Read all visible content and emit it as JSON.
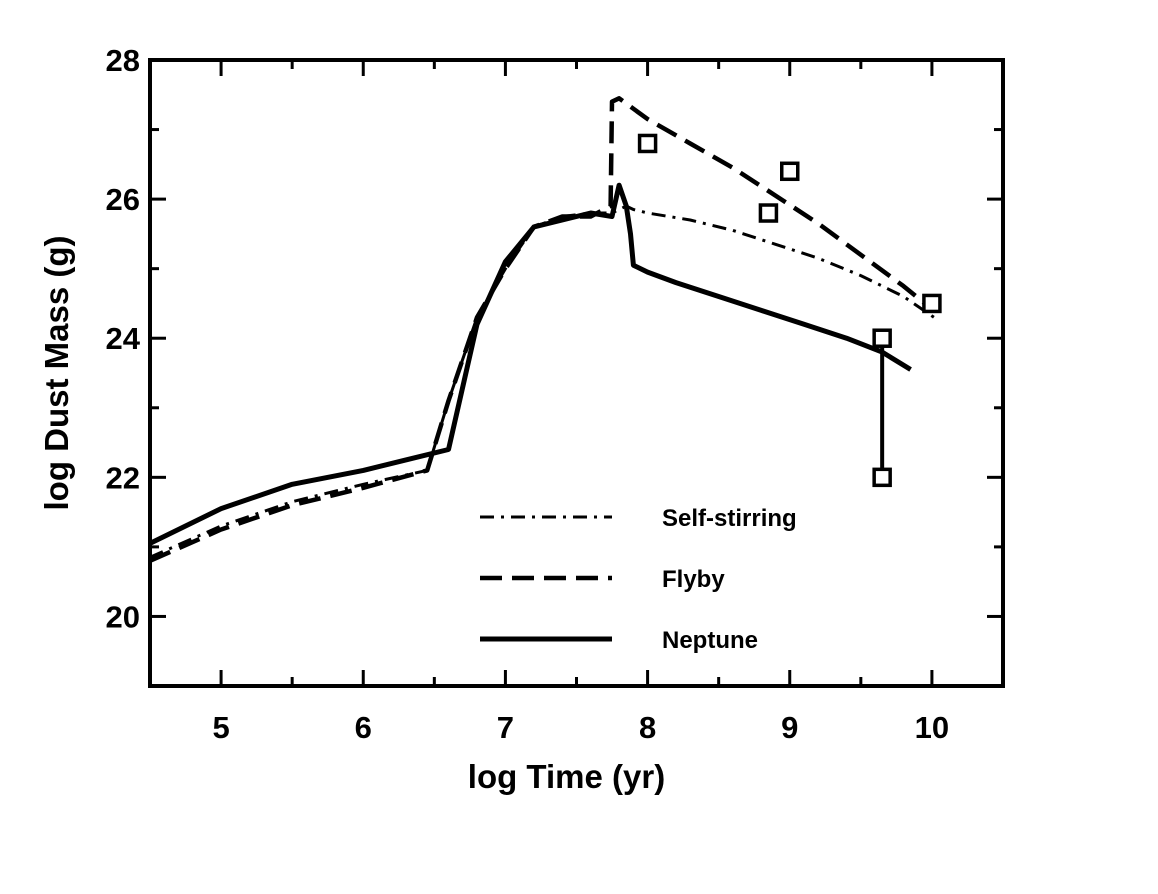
{
  "chart_data": {
    "type": "line",
    "title": "",
    "xlabel": "log Time (yr)",
    "ylabel": "log Dust Mass (g)",
    "xlim": [
      4.5,
      10.5
    ],
    "ylim": [
      19,
      28
    ],
    "x_ticks": [
      5,
      6,
      7,
      8,
      9,
      10
    ],
    "x_tick_labels": [
      "5",
      "6",
      "7",
      "8",
      "9",
      "10"
    ],
    "y_ticks": [
      20,
      22,
      24,
      26,
      28
    ],
    "y_tick_labels": [
      "20",
      "22",
      "24",
      "26",
      "28"
    ],
    "grid": false,
    "legend_position": "bottom-center",
    "series": [
      {
        "name": "Self-stirring",
        "style": "dash-dot",
        "x": [
          4.5,
          5.0,
          5.5,
          6.0,
          6.45,
          6.6,
          6.8,
          7.0,
          7.2,
          7.4,
          7.6,
          7.75,
          7.8,
          7.85,
          7.9,
          8.0,
          8.3,
          8.6,
          8.9,
          9.2,
          9.5,
          9.8,
          10.05
        ],
        "y": [
          20.85,
          21.3,
          21.65,
          21.9,
          22.1,
          23.1,
          24.3,
          25.0,
          25.6,
          25.75,
          25.8,
          25.8,
          25.85,
          25.9,
          25.85,
          25.8,
          25.7,
          25.55,
          25.35,
          25.15,
          24.9,
          24.6,
          24.25
        ]
      },
      {
        "name": "Flyby",
        "style": "dashed",
        "x": [
          4.5,
          5.0,
          5.5,
          6.0,
          6.45,
          6.6,
          6.8,
          7.0,
          7.2,
          7.4,
          7.6,
          7.74,
          7.75,
          7.8,
          8.0,
          8.3,
          8.6,
          8.9,
          9.2,
          9.5,
          9.8,
          9.95
        ],
        "y": [
          20.8,
          21.25,
          21.6,
          21.85,
          22.1,
          23.1,
          24.3,
          25.0,
          25.6,
          25.75,
          25.75,
          25.9,
          27.4,
          27.45,
          27.15,
          26.8,
          26.45,
          26.05,
          25.65,
          25.2,
          24.75,
          24.5
        ]
      },
      {
        "name": "Neptune",
        "style": "solid",
        "x": [
          4.5,
          5.0,
          5.5,
          6.0,
          6.3,
          6.6,
          6.8,
          7.0,
          7.2,
          7.4,
          7.6,
          7.75,
          7.8,
          7.85,
          7.88,
          7.9,
          8.0,
          8.2,
          8.5,
          8.8,
          9.1,
          9.4,
          9.65,
          9.85
        ],
        "y": [
          21.05,
          21.55,
          21.9,
          22.1,
          22.25,
          22.4,
          24.2,
          25.1,
          25.6,
          25.7,
          25.8,
          25.75,
          26.2,
          25.9,
          25.5,
          25.05,
          24.95,
          24.8,
          24.6,
          24.4,
          24.2,
          24.0,
          23.8,
          23.55
        ]
      }
    ],
    "observations": {
      "marker": "open-square",
      "points": [
        {
          "x": 8.0,
          "y": 26.8
        },
        {
          "x": 8.85,
          "y": 25.8
        },
        {
          "x": 9.0,
          "y": 26.4
        },
        {
          "x": 9.65,
          "y": 24.0
        },
        {
          "x": 9.65,
          "y": 22.0
        },
        {
          "x": 10.0,
          "y": 24.5
        }
      ],
      "error_bar": {
        "x": 9.65,
        "y_low": 22.0,
        "y_high": 24.0
      }
    }
  }
}
